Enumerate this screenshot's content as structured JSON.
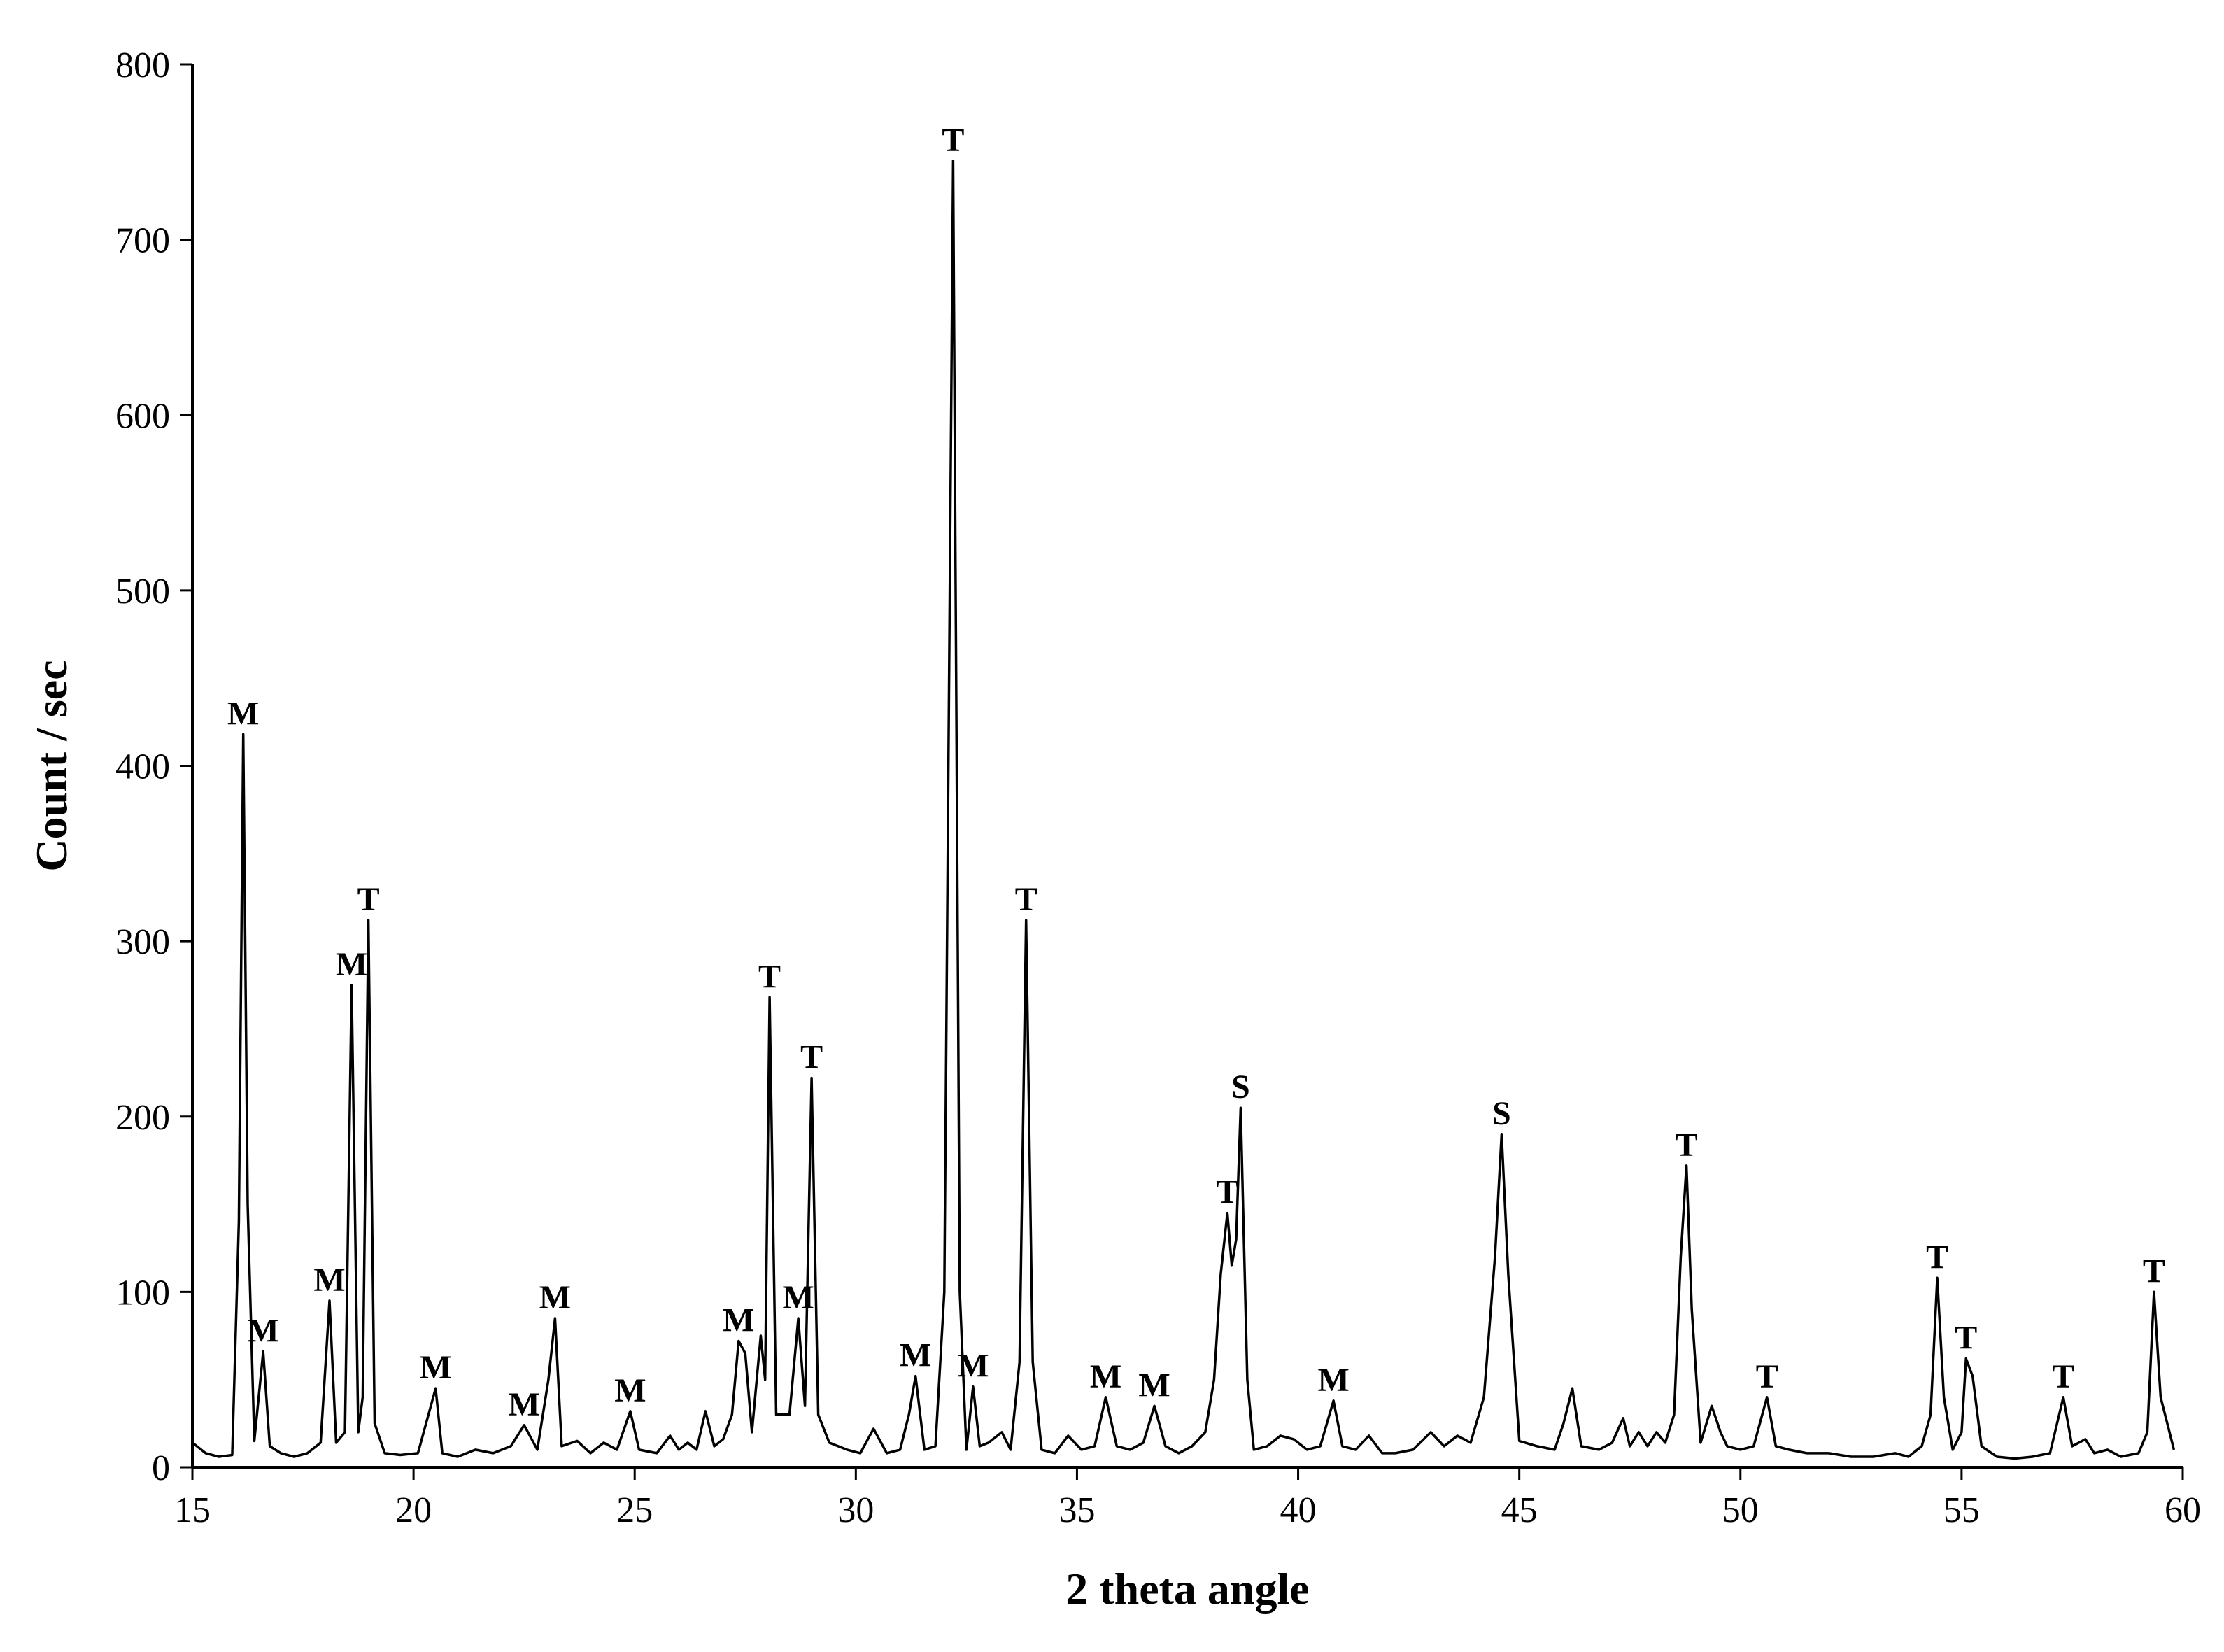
{
  "chart_data": {
    "type": "line",
    "title": "",
    "xlabel": "2 theta angle",
    "ylabel": "Count / sec",
    "xlim": [
      15,
      60
    ],
    "ylim": [
      0,
      800
    ],
    "xticks": [
      15,
      20,
      25,
      30,
      35,
      40,
      45,
      50,
      55,
      60
    ],
    "yticks": [
      0,
      100,
      200,
      300,
      400,
      500,
      600,
      700,
      800
    ],
    "grid": false,
    "legend": "none",
    "line_color": "#000000",
    "series": [
      {
        "points": [
          [
            15.0,
            14
          ],
          [
            15.3,
            8
          ],
          [
            15.6,
            6
          ],
          [
            15.9,
            7
          ],
          [
            16.05,
            140
          ],
          [
            16.15,
            418
          ],
          [
            16.25,
            150
          ],
          [
            16.4,
            15
          ],
          [
            16.6,
            66
          ],
          [
            16.75,
            12
          ],
          [
            17.0,
            8
          ],
          [
            17.3,
            6
          ],
          [
            17.6,
            8
          ],
          [
            17.9,
            14
          ],
          [
            18.1,
            95
          ],
          [
            18.25,
            14
          ],
          [
            18.45,
            20
          ],
          [
            18.6,
            275
          ],
          [
            18.75,
            20
          ],
          [
            18.85,
            40
          ],
          [
            18.98,
            312
          ],
          [
            19.12,
            25
          ],
          [
            19.35,
            8
          ],
          [
            19.7,
            7
          ],
          [
            20.1,
            8
          ],
          [
            20.5,
            45
          ],
          [
            20.65,
            8
          ],
          [
            21.0,
            6
          ],
          [
            21.4,
            10
          ],
          [
            21.8,
            8
          ],
          [
            22.2,
            12
          ],
          [
            22.5,
            24
          ],
          [
            22.8,
            10
          ],
          [
            23.05,
            50
          ],
          [
            23.2,
            85
          ],
          [
            23.35,
            12
          ],
          [
            23.7,
            15
          ],
          [
            24.0,
            8
          ],
          [
            24.3,
            14
          ],
          [
            24.6,
            10
          ],
          [
            24.9,
            32
          ],
          [
            25.1,
            10
          ],
          [
            25.5,
            8
          ],
          [
            25.8,
            18
          ],
          [
            26.0,
            10
          ],
          [
            26.2,
            14
          ],
          [
            26.4,
            10
          ],
          [
            26.6,
            32
          ],
          [
            26.8,
            12
          ],
          [
            27.0,
            16
          ],
          [
            27.2,
            30
          ],
          [
            27.35,
            72
          ],
          [
            27.5,
            65
          ],
          [
            27.65,
            20
          ],
          [
            27.85,
            75
          ],
          [
            27.95,
            50
          ],
          [
            28.05,
            268
          ],
          [
            28.2,
            30
          ],
          [
            28.5,
            30
          ],
          [
            28.7,
            85
          ],
          [
            28.85,
            35
          ],
          [
            29.0,
            222
          ],
          [
            29.15,
            30
          ],
          [
            29.4,
            14
          ],
          [
            29.8,
            10
          ],
          [
            30.1,
            8
          ],
          [
            30.4,
            22
          ],
          [
            30.7,
            8
          ],
          [
            31.0,
            10
          ],
          [
            31.2,
            30
          ],
          [
            31.35,
            52
          ],
          [
            31.55,
            10
          ],
          [
            31.8,
            12
          ],
          [
            32.0,
            100
          ],
          [
            32.2,
            745
          ],
          [
            32.35,
            100
          ],
          [
            32.5,
            10
          ],
          [
            32.65,
            46
          ],
          [
            32.8,
            12
          ],
          [
            33.0,
            14
          ],
          [
            33.3,
            20
          ],
          [
            33.5,
            10
          ],
          [
            33.7,
            60
          ],
          [
            33.85,
            312
          ],
          [
            34.0,
            60
          ],
          [
            34.2,
            10
          ],
          [
            34.5,
            8
          ],
          [
            34.8,
            18
          ],
          [
            35.1,
            10
          ],
          [
            35.4,
            12
          ],
          [
            35.65,
            40
          ],
          [
            35.9,
            12
          ],
          [
            36.2,
            10
          ],
          [
            36.5,
            14
          ],
          [
            36.75,
            35
          ],
          [
            37.0,
            12
          ],
          [
            37.3,
            8
          ],
          [
            37.6,
            12
          ],
          [
            37.9,
            20
          ],
          [
            38.1,
            50
          ],
          [
            38.25,
            110
          ],
          [
            38.4,
            145
          ],
          [
            38.5,
            115
          ],
          [
            38.6,
            130
          ],
          [
            38.7,
            205
          ],
          [
            38.85,
            50
          ],
          [
            39.0,
            10
          ],
          [
            39.3,
            12
          ],
          [
            39.6,
            18
          ],
          [
            39.9,
            16
          ],
          [
            40.2,
            10
          ],
          [
            40.5,
            12
          ],
          [
            40.8,
            38
          ],
          [
            41.0,
            12
          ],
          [
            41.3,
            10
          ],
          [
            41.6,
            18
          ],
          [
            41.9,
            8
          ],
          [
            42.2,
            8
          ],
          [
            42.6,
            10
          ],
          [
            43.0,
            20
          ],
          [
            43.3,
            12
          ],
          [
            43.6,
            18
          ],
          [
            43.9,
            14
          ],
          [
            44.2,
            40
          ],
          [
            44.45,
            120
          ],
          [
            44.6,
            190
          ],
          [
            44.75,
            110
          ],
          [
            45.0,
            15
          ],
          [
            45.4,
            12
          ],
          [
            45.8,
            10
          ],
          [
            46.0,
            25
          ],
          [
            46.2,
            45
          ],
          [
            46.4,
            12
          ],
          [
            46.8,
            10
          ],
          [
            47.1,
            14
          ],
          [
            47.35,
            28
          ],
          [
            47.5,
            12
          ],
          [
            47.7,
            20
          ],
          [
            47.9,
            12
          ],
          [
            48.1,
            20
          ],
          [
            48.3,
            14
          ],
          [
            48.5,
            30
          ],
          [
            48.65,
            120
          ],
          [
            48.78,
            172
          ],
          [
            48.9,
            90
          ],
          [
            49.1,
            14
          ],
          [
            49.35,
            35
          ],
          [
            49.55,
            20
          ],
          [
            49.7,
            12
          ],
          [
            50.0,
            10
          ],
          [
            50.3,
            12
          ],
          [
            50.6,
            40
          ],
          [
            50.8,
            12
          ],
          [
            51.1,
            10
          ],
          [
            51.5,
            8
          ],
          [
            52.0,
            8
          ],
          [
            52.5,
            6
          ],
          [
            53.0,
            6
          ],
          [
            53.5,
            8
          ],
          [
            53.8,
            6
          ],
          [
            54.1,
            12
          ],
          [
            54.3,
            30
          ],
          [
            54.45,
            108
          ],
          [
            54.6,
            40
          ],
          [
            54.8,
            10
          ],
          [
            55.0,
            20
          ],
          [
            55.1,
            62
          ],
          [
            55.25,
            52
          ],
          [
            55.45,
            12
          ],
          [
            55.8,
            6
          ],
          [
            56.2,
            5
          ],
          [
            56.6,
            6
          ],
          [
            57.0,
            8
          ],
          [
            57.3,
            40
          ],
          [
            57.5,
            12
          ],
          [
            57.8,
            16
          ],
          [
            58.0,
            8
          ],
          [
            58.3,
            10
          ],
          [
            58.6,
            6
          ],
          [
            59.0,
            8
          ],
          [
            59.2,
            20
          ],
          [
            59.35,
            100
          ],
          [
            59.5,
            40
          ],
          [
            59.8,
            10
          ]
        ]
      }
    ],
    "annotations": [
      {
        "text": "M",
        "x": 16.15,
        "y": 418
      },
      {
        "text": "M",
        "x": 16.6,
        "y": 66
      },
      {
        "text": "M",
        "x": 18.1,
        "y": 95
      },
      {
        "text": "M",
        "x": 18.6,
        "y": 275
      },
      {
        "text": "T",
        "x": 18.98,
        "y": 312
      },
      {
        "text": "M",
        "x": 20.5,
        "y": 45
      },
      {
        "text": "M",
        "x": 22.5,
        "y": 24
      },
      {
        "text": "M",
        "x": 23.2,
        "y": 85
      },
      {
        "text": "M",
        "x": 24.9,
        "y": 32
      },
      {
        "text": "M",
        "x": 27.35,
        "y": 72
      },
      {
        "text": "T",
        "x": 28.05,
        "y": 268
      },
      {
        "text": "M",
        "x": 28.7,
        "y": 85
      },
      {
        "text": "T",
        "x": 29.0,
        "y": 222
      },
      {
        "text": "M",
        "x": 31.35,
        "y": 52
      },
      {
        "text": "T",
        "x": 32.2,
        "y": 745
      },
      {
        "text": "M",
        "x": 32.65,
        "y": 46
      },
      {
        "text": "T",
        "x": 33.85,
        "y": 312
      },
      {
        "text": "M",
        "x": 35.65,
        "y": 40
      },
      {
        "text": "M",
        "x": 36.75,
        "y": 35
      },
      {
        "text": "T",
        "x": 38.4,
        "y": 145
      },
      {
        "text": "S",
        "x": 38.7,
        "y": 205
      },
      {
        "text": "M",
        "x": 40.8,
        "y": 38
      },
      {
        "text": "S",
        "x": 44.6,
        "y": 190
      },
      {
        "text": "T",
        "x": 48.78,
        "y": 172
      },
      {
        "text": "T",
        "x": 50.6,
        "y": 40
      },
      {
        "text": "T",
        "x": 54.45,
        "y": 108
      },
      {
        "text": "T",
        "x": 55.1,
        "y": 62
      },
      {
        "text": "T",
        "x": 57.3,
        "y": 40
      },
      {
        "text": "T",
        "x": 59.35,
        "y": 100
      }
    ]
  }
}
